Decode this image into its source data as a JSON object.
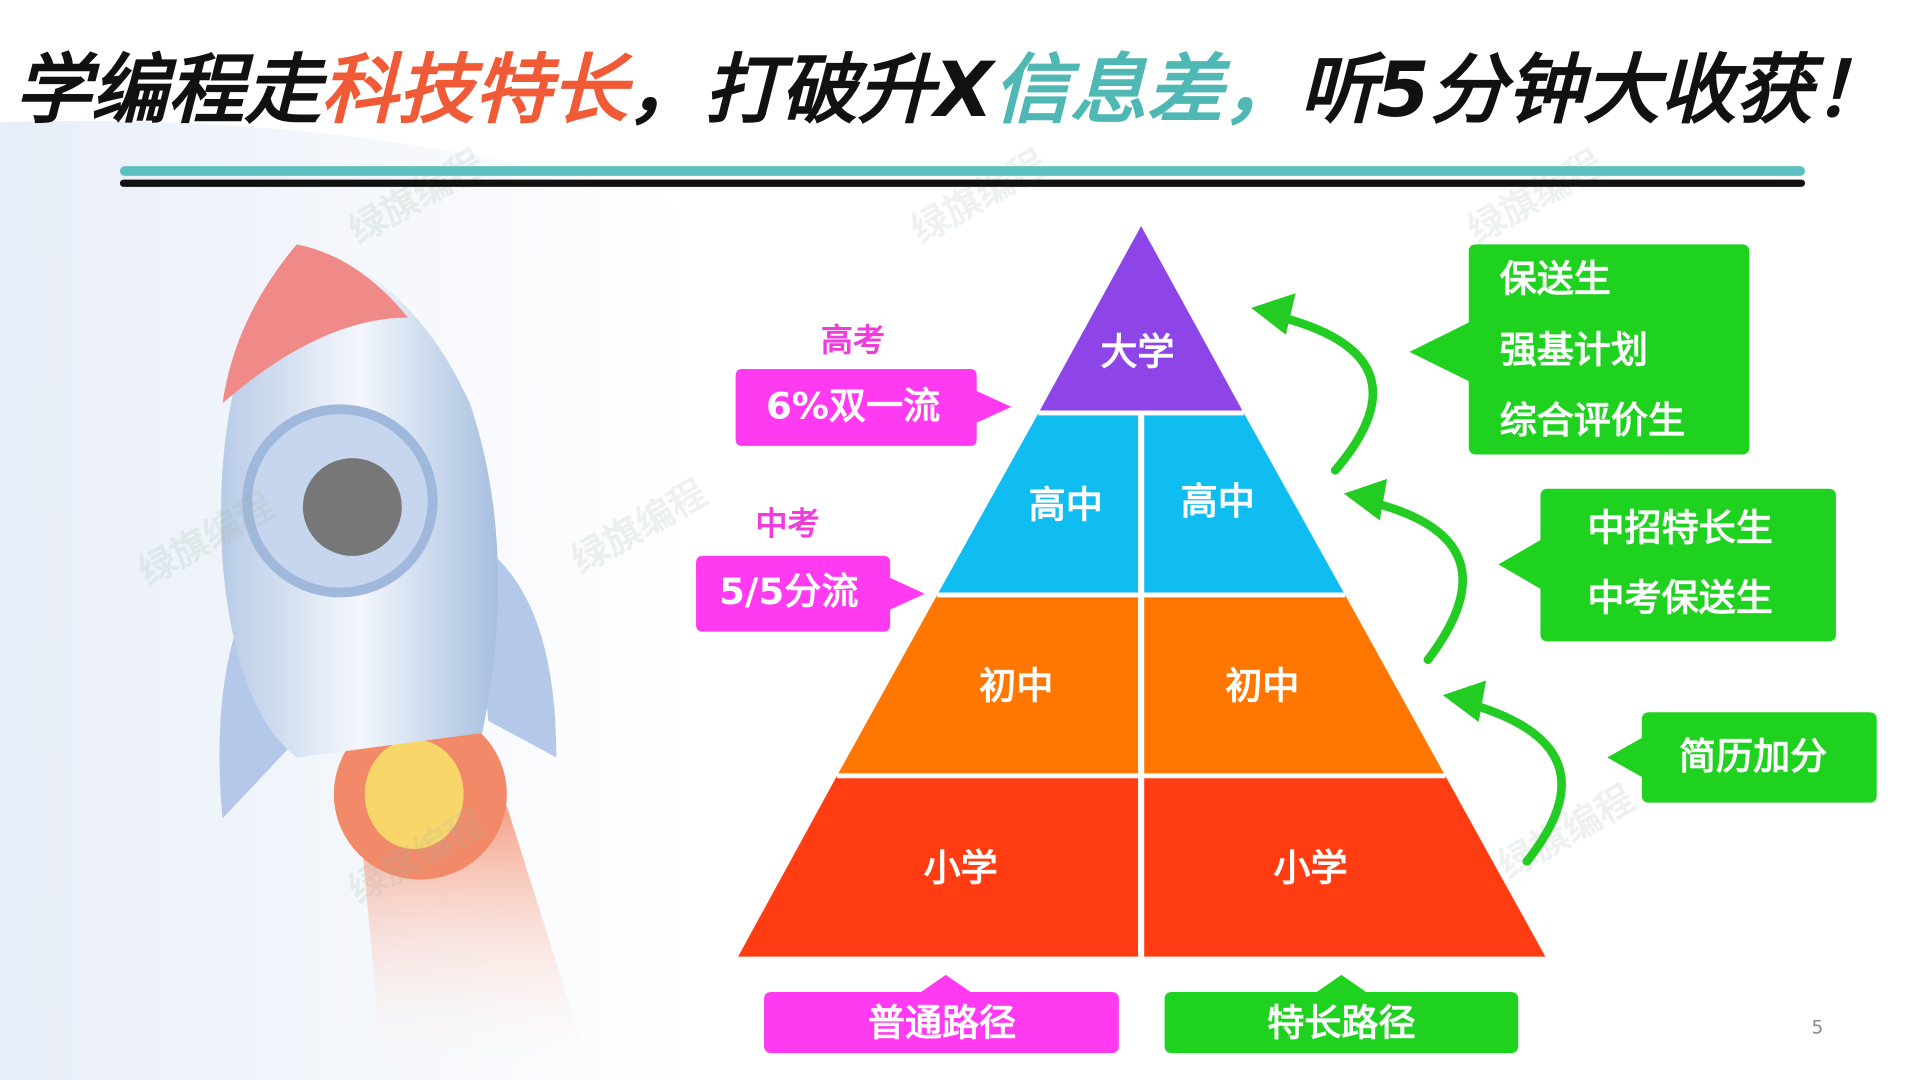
{
  "title": {
    "parts": [
      "学编程走",
      "科技特长",
      "，打破升X",
      "信息差，",
      "听5分钟大收获！"
    ]
  },
  "watermark": "绿旗编程",
  "pyramid": {
    "levels": [
      [
        "大学"
      ],
      [
        "高中",
        "高中"
      ],
      [
        "初中",
        "初中"
      ],
      [
        "小学",
        "小学"
      ]
    ]
  },
  "left_callouts": [
    {
      "heading": "高考",
      "text": "6%双一流"
    },
    {
      "heading": "中考",
      "text": "5/5分流"
    }
  ],
  "right_callouts": [
    [
      "保送生",
      "强基计划",
      "综合评价生"
    ],
    [
      "中招特长生",
      "中考保送生"
    ],
    [
      "简历加分"
    ]
  ],
  "paths": [
    "普通路径",
    "特长路径"
  ],
  "page_number": "5"
}
